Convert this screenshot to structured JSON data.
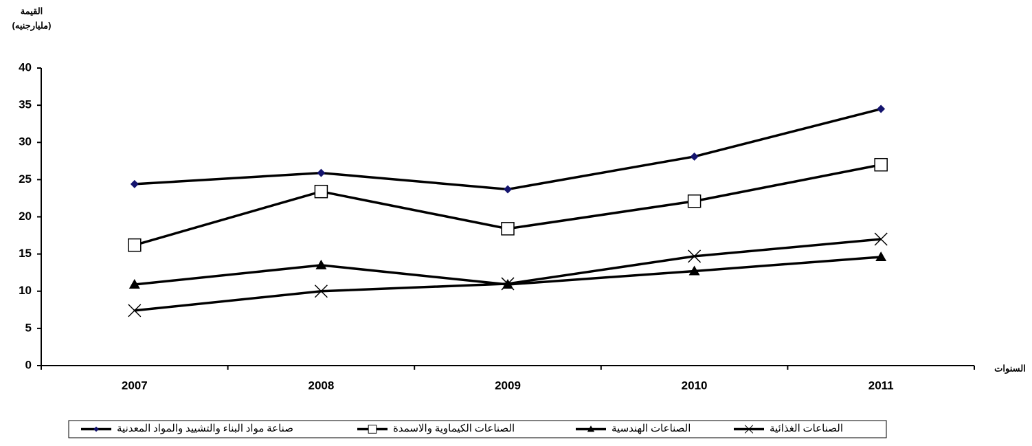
{
  "chart_data": {
    "type": "line",
    "y_axis_title": [
      "القيمة",
      "(مليارجنيه)"
    ],
    "x_axis_title": "السنوات",
    "categories": [
      "2007",
      "2008",
      "2009",
      "2010",
      "2011"
    ],
    "ylim": [
      0,
      40
    ],
    "yticks": [
      0,
      5,
      10,
      15,
      20,
      25,
      30,
      35,
      40
    ],
    "grid": false,
    "series": [
      {
        "name": "صناعة مواد البناء والتشييد والمواد المعدنية",
        "color": "#000000",
        "marker": "diamond",
        "marker_color": "#14146e",
        "values": [
          24.4,
          25.9,
          23.7,
          28.1,
          34.5
        ]
      },
      {
        "name": "الصناعات الكيماوية والاسمدة",
        "color": "#000000",
        "marker": "square",
        "marker_color": "#ffffff",
        "values": [
          16.2,
          23.4,
          18.4,
          22.1,
          27.0
        ]
      },
      {
        "name": "الصناعات الهندسية",
        "color": "#000000",
        "marker": "triangle",
        "marker_color": "#000000",
        "values": [
          10.9,
          13.5,
          10.9,
          12.7,
          14.6
        ]
      },
      {
        "name": "الصناعات الغذائية",
        "color": "#000000",
        "marker": "x",
        "marker_color": "#000000",
        "values": [
          7.4,
          10.0,
          11.0,
          14.7,
          17.0
        ]
      }
    ]
  }
}
